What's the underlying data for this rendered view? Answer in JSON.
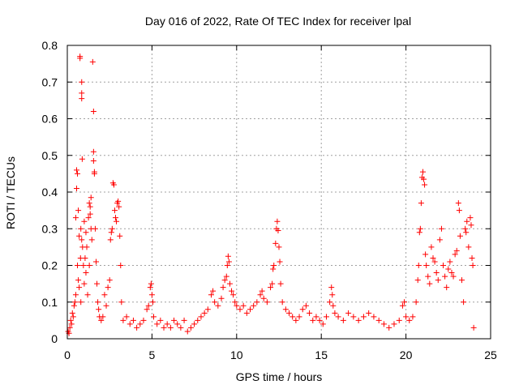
{
  "chart_data": {
    "type": "scatter",
    "title": "Day 016 of 2022, Rate Of TEC Index for receiver lpal",
    "xlabel": "GPS time / hours",
    "ylabel": "ROTI / TECUs",
    "xlim": [
      0,
      25
    ],
    "ylim": [
      0,
      0.8
    ],
    "x_ticks": [
      0,
      5,
      10,
      15,
      20,
      25
    ],
    "y_ticks": [
      0,
      0.1,
      0.2,
      0.3,
      0.4,
      0.5,
      0.6,
      0.7,
      0.8
    ],
    "x_tick_labels": [
      "0",
      "5",
      "10",
      "15",
      "20",
      "25"
    ],
    "y_tick_labels": [
      "0",
      "0.1",
      "0.2",
      "0.3",
      "0.4",
      "0.5",
      "0.6",
      "0.7",
      "0.8"
    ],
    "grid": true,
    "marker": "plus",
    "color": "#ff0000",
    "series": [
      {
        "values": [
          [
            0.05,
            0.02
          ],
          [
            0.1,
            0.015
          ],
          [
            0.15,
            0.03
          ],
          [
            0.2,
            0.05
          ],
          [
            0.25,
            0.04
          ],
          [
            0.3,
            0.07
          ],
          [
            0.35,
            0.06
          ],
          [
            0.4,
            0.09
          ],
          [
            0.45,
            0.1
          ],
          [
            0.5,
            0.12
          ],
          [
            0.5,
            0.33
          ],
          [
            0.55,
            0.41
          ],
          [
            0.55,
            0.46
          ],
          [
            0.6,
            0.45
          ],
          [
            0.6,
            0.2
          ],
          [
            0.65,
            0.35
          ],
          [
            0.65,
            0.16
          ],
          [
            0.7,
            0.28
          ],
          [
            0.7,
            0.14
          ],
          [
            0.75,
            0.77
          ],
          [
            0.75,
            0.765
          ],
          [
            0.78,
            0.22
          ],
          [
            0.8,
            0.3
          ],
          [
            0.8,
            0.1
          ],
          [
            0.85,
            0.7
          ],
          [
            0.85,
            0.27
          ],
          [
            0.85,
            0.67
          ],
          [
            0.85,
            0.655
          ],
          [
            0.88,
            0.49
          ],
          [
            0.9,
            0.25
          ],
          [
            0.95,
            0.2
          ],
          [
            1.0,
            0.32
          ],
          [
            1.0,
            0.15
          ],
          [
            1.05,
            0.22
          ],
          [
            1.1,
            0.18
          ],
          [
            1.1,
            0.29
          ],
          [
            1.15,
            0.25
          ],
          [
            1.2,
            0.12
          ],
          [
            1.25,
            0.33
          ],
          [
            1.3,
            0.37
          ],
          [
            1.3,
            0.2
          ],
          [
            1.35,
            0.36
          ],
          [
            1.35,
            0.34
          ],
          [
            1.4,
            0.385
          ],
          [
            1.4,
            0.3
          ],
          [
            1.45,
            0.27
          ],
          [
            1.5,
            0.755
          ],
          [
            1.55,
            0.62
          ],
          [
            1.55,
            0.51
          ],
          [
            1.55,
            0.485
          ],
          [
            1.6,
            0.455
          ],
          [
            1.6,
            0.45
          ],
          [
            1.65,
            0.3
          ],
          [
            1.7,
            0.21
          ],
          [
            1.75,
            0.15
          ],
          [
            1.8,
            0.1
          ],
          [
            1.85,
            0.08
          ],
          [
            1.9,
            0.06
          ],
          [
            2.0,
            0.05
          ],
          [
            2.1,
            0.06
          ],
          [
            2.2,
            0.12
          ],
          [
            2.3,
            0.09
          ],
          [
            2.4,
            0.14
          ],
          [
            2.5,
            0.16
          ],
          [
            2.55,
            0.27
          ],
          [
            2.6,
            0.29
          ],
          [
            2.65,
            0.3
          ],
          [
            2.7,
            0.425
          ],
          [
            2.75,
            0.42
          ],
          [
            2.8,
            0.35
          ],
          [
            2.85,
            0.33
          ],
          [
            2.9,
            0.32
          ],
          [
            2.95,
            0.37
          ],
          [
            3.0,
            0.375
          ],
          [
            3.05,
            0.36
          ],
          [
            3.1,
            0.28
          ],
          [
            3.15,
            0.2
          ],
          [
            3.2,
            0.1
          ],
          [
            3.3,
            0.05
          ],
          [
            3.5,
            0.06
          ],
          [
            3.7,
            0.04
          ],
          [
            3.9,
            0.05
          ],
          [
            4.1,
            0.03
          ],
          [
            4.3,
            0.04
          ],
          [
            4.5,
            0.05
          ],
          [
            4.7,
            0.08
          ],
          [
            4.8,
            0.09
          ],
          [
            4.9,
            0.14
          ],
          [
            4.95,
            0.15
          ],
          [
            5.0,
            0.12
          ],
          [
            5.05,
            0.1
          ],
          [
            5.1,
            0.06
          ],
          [
            5.3,
            0.04
          ],
          [
            5.5,
            0.05
          ],
          [
            5.7,
            0.03
          ],
          [
            5.9,
            0.04
          ],
          [
            6.1,
            0.03
          ],
          [
            6.3,
            0.05
          ],
          [
            6.5,
            0.04
          ],
          [
            6.7,
            0.03
          ],
          [
            6.9,
            0.05
          ],
          [
            7.1,
            0.02
          ],
          [
            7.3,
            0.03
          ],
          [
            7.5,
            0.04
          ],
          [
            7.7,
            0.05
          ],
          [
            7.9,
            0.06
          ],
          [
            8.1,
            0.07
          ],
          [
            8.3,
            0.08
          ],
          [
            8.5,
            0.12
          ],
          [
            8.6,
            0.13
          ],
          [
            8.7,
            0.1
          ],
          [
            8.9,
            0.09
          ],
          [
            9.1,
            0.11
          ],
          [
            9.2,
            0.14
          ],
          [
            9.3,
            0.16
          ],
          [
            9.4,
            0.17
          ],
          [
            9.45,
            0.2
          ],
          [
            9.5,
            0.225
          ],
          [
            9.55,
            0.21
          ],
          [
            9.6,
            0.15
          ],
          [
            9.7,
            0.13
          ],
          [
            9.8,
            0.12
          ],
          [
            9.9,
            0.1
          ],
          [
            10.0,
            0.09
          ],
          [
            10.2,
            0.08
          ],
          [
            10.4,
            0.09
          ],
          [
            10.6,
            0.07
          ],
          [
            10.8,
            0.08
          ],
          [
            11.0,
            0.09
          ],
          [
            11.2,
            0.1
          ],
          [
            11.4,
            0.12
          ],
          [
            11.5,
            0.13
          ],
          [
            11.6,
            0.11
          ],
          [
            11.8,
            0.1
          ],
          [
            12.0,
            0.14
          ],
          [
            12.1,
            0.15
          ],
          [
            12.15,
            0.19
          ],
          [
            12.2,
            0.2
          ],
          [
            12.3,
            0.26
          ],
          [
            12.35,
            0.3
          ],
          [
            12.4,
            0.32
          ],
          [
            12.45,
            0.295
          ],
          [
            12.5,
            0.25
          ],
          [
            12.55,
            0.21
          ],
          [
            12.6,
            0.15
          ],
          [
            12.7,
            0.1
          ],
          [
            12.9,
            0.08
          ],
          [
            13.1,
            0.07
          ],
          [
            13.3,
            0.06
          ],
          [
            13.5,
            0.05
          ],
          [
            13.7,
            0.06
          ],
          [
            13.9,
            0.08
          ],
          [
            14.1,
            0.09
          ],
          [
            14.3,
            0.07
          ],
          [
            14.5,
            0.05
          ],
          [
            14.7,
            0.06
          ],
          [
            14.9,
            0.05
          ],
          [
            15.1,
            0.04
          ],
          [
            15.3,
            0.06
          ],
          [
            15.5,
            0.1
          ],
          [
            15.6,
            0.14
          ],
          [
            15.65,
            0.12
          ],
          [
            15.7,
            0.09
          ],
          [
            15.8,
            0.07
          ],
          [
            16.0,
            0.06
          ],
          [
            16.3,
            0.05
          ],
          [
            16.6,
            0.07
          ],
          [
            16.9,
            0.06
          ],
          [
            17.2,
            0.05
          ],
          [
            17.5,
            0.06
          ],
          [
            17.8,
            0.07
          ],
          [
            18.1,
            0.06
          ],
          [
            18.4,
            0.05
          ],
          [
            18.7,
            0.04
          ],
          [
            19.0,
            0.03
          ],
          [
            19.3,
            0.04
          ],
          [
            19.6,
            0.05
          ],
          [
            19.8,
            0.09
          ],
          [
            19.9,
            0.1
          ],
          [
            20.0,
            0.06
          ],
          [
            20.2,
            0.05
          ],
          [
            20.4,
            0.06
          ],
          [
            20.6,
            0.1
          ],
          [
            20.7,
            0.16
          ],
          [
            20.75,
            0.2
          ],
          [
            20.8,
            0.29
          ],
          [
            20.85,
            0.3
          ],
          [
            20.9,
            0.37
          ],
          [
            20.95,
            0.44
          ],
          [
            21.0,
            0.455
          ],
          [
            21.05,
            0.435
          ],
          [
            21.1,
            0.42
          ],
          [
            21.15,
            0.23
          ],
          [
            21.2,
            0.2
          ],
          [
            21.3,
            0.17
          ],
          [
            21.4,
            0.15
          ],
          [
            21.5,
            0.25
          ],
          [
            21.6,
            0.22
          ],
          [
            21.7,
            0.21
          ],
          [
            21.8,
            0.18
          ],
          [
            21.9,
            0.16
          ],
          [
            22.0,
            0.27
          ],
          [
            22.1,
            0.3
          ],
          [
            22.2,
            0.2
          ],
          [
            22.3,
            0.17
          ],
          [
            22.4,
            0.14
          ],
          [
            22.5,
            0.19
          ],
          [
            22.6,
            0.21
          ],
          [
            22.7,
            0.18
          ],
          [
            22.8,
            0.17
          ],
          [
            22.9,
            0.23
          ],
          [
            23.0,
            0.24
          ],
          [
            23.1,
            0.37
          ],
          [
            23.15,
            0.35
          ],
          [
            23.2,
            0.28
          ],
          [
            23.3,
            0.16
          ],
          [
            23.4,
            0.1
          ],
          [
            23.5,
            0.3
          ],
          [
            23.55,
            0.29
          ],
          [
            23.6,
            0.32
          ],
          [
            23.7,
            0.25
          ],
          [
            23.8,
            0.33
          ],
          [
            23.85,
            0.31
          ],
          [
            23.9,
            0.22
          ],
          [
            23.95,
            0.2
          ],
          [
            24.0,
            0.03
          ]
        ]
      }
    ]
  }
}
